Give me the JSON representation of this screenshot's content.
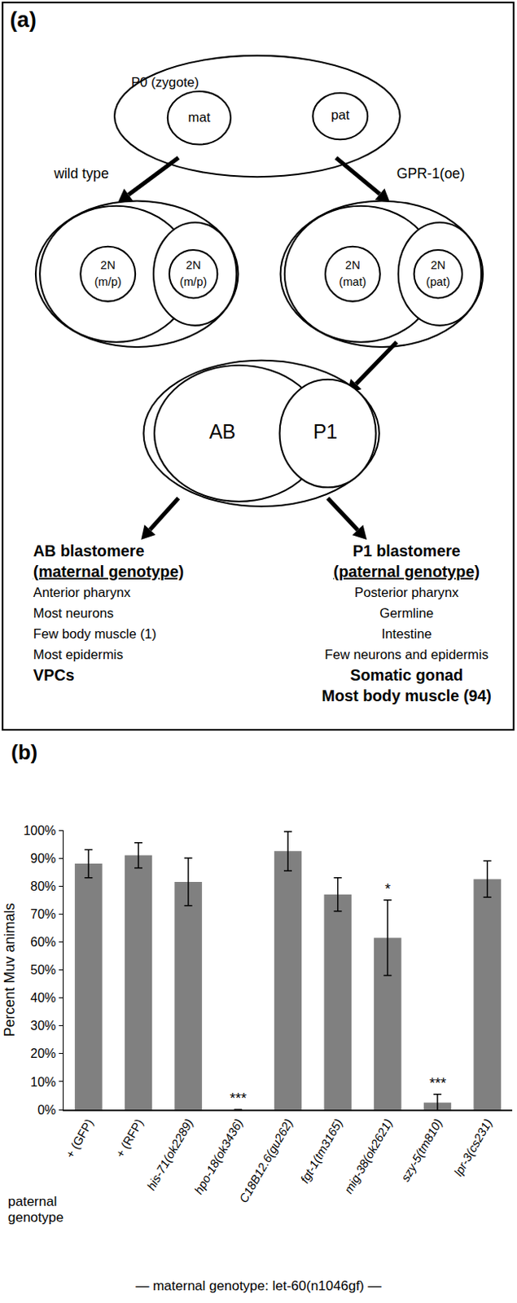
{
  "panel_a": {
    "label": "(a)",
    "zygote": {
      "label": "P0 (zygote)",
      "pronuclei": [
        "mat",
        "pat"
      ]
    },
    "branches": [
      {
        "label": "wild type",
        "nuclei": [
          [
            "2N",
            "(m/p)"
          ],
          [
            "2N",
            "(m/p)"
          ]
        ]
      },
      {
        "label": "GPR-1(oe)",
        "nuclei": [
          [
            "2N",
            "(mat)"
          ],
          [
            "2N",
            "(pat)"
          ]
        ]
      }
    ],
    "two_cell": [
      "AB",
      "P1"
    ],
    "fates": [
      {
        "title": "AB blastomere",
        "genotype": "(maternal genotype)",
        "lines": [
          {
            "text": "Anterior pharynx",
            "bold": false
          },
          {
            "text": "Most neurons",
            "bold": false
          },
          {
            "text": "Few body muscle (1)",
            "bold": false
          },
          {
            "text": "Most epidermis",
            "bold": false
          },
          {
            "text": "VPCs",
            "bold": true
          }
        ]
      },
      {
        "title": "P1 blastomere",
        "genotype": "(paternal genotype)",
        "lines": [
          {
            "text": "Posterior pharynx",
            "bold": false
          },
          {
            "text": "Germline",
            "bold": false
          },
          {
            "text": "Intestine",
            "bold": false
          },
          {
            "text": "Few neurons and epidermis",
            "bold": false
          },
          {
            "text": "Somatic gonad",
            "bold": true
          },
          {
            "text": "Most body muscle (94)",
            "bold": true
          }
        ]
      }
    ]
  },
  "chart_data": {
    "type": "bar",
    "panel_label": "(b)",
    "ylabel": "Percent Muv animals",
    "xlabel": "paternal genotype",
    "footer": "— maternal genotype: let-60(n1046gf) —",
    "categories": [
      "+ (GFP)",
      "+ (RFP)",
      "his-71(ok2289)",
      "hpo-18(ok3436)",
      "C18B12.6(gu262)",
      "fgt-1(tm3165)",
      "mig-38(ok2621)",
      "szy-5(tm810)",
      "lpr-3(cs231)"
    ],
    "values": [
      88,
      91,
      81.5,
      0,
      92.5,
      77,
      61.5,
      2.5,
      82.5
    ],
    "errors": [
      5,
      4.5,
      8.5,
      0,
      7,
      6,
      13.5,
      3,
      6.5
    ],
    "color": "#808080",
    "ylim": [
      0,
      100
    ],
    "yticks": [
      {
        "value": 0,
        "label": "0%"
      },
      {
        "value": 10,
        "label": "10%"
      },
      {
        "value": 20,
        "label": "20%"
      },
      {
        "value": 30,
        "label": "30%"
      },
      {
        "value": 40,
        "label": "40%"
      },
      {
        "value": 50,
        "label": "50%"
      },
      {
        "value": 60,
        "label": "60%"
      },
      {
        "value": 70,
        "label": "70%"
      },
      {
        "value": 80,
        "label": "80%"
      },
      {
        "value": 90,
        "label": "90%"
      },
      {
        "value": 100,
        "label": "100%"
      }
    ],
    "grid": false,
    "annotations": [
      {
        "category": "hpo-18(ok3436)",
        "text": "***"
      },
      {
        "category": "mig-38(ok2621)",
        "text": "*"
      },
      {
        "category": "szy-5(tm810)",
        "text": "***"
      }
    ]
  }
}
